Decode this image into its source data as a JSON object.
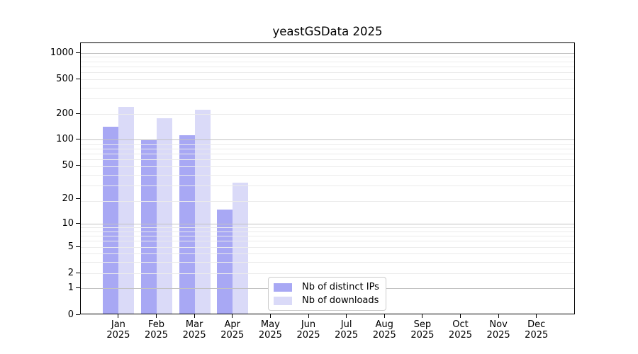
{
  "title": "yeastGSData 2025",
  "chart_data": {
    "type": "bar",
    "title": "yeastGSData 2025",
    "categories": [
      {
        "month": "Jan",
        "year": "2025",
        "key": "jan"
      },
      {
        "month": "Feb",
        "year": "2025",
        "key": "feb"
      },
      {
        "month": "Mar",
        "year": "2025",
        "key": "mar"
      },
      {
        "month": "Apr",
        "year": "2025",
        "key": "apr"
      },
      {
        "month": "May",
        "year": "2025",
        "key": "may"
      },
      {
        "month": "Jun",
        "year": "2025",
        "key": "jun"
      },
      {
        "month": "Jul",
        "year": "2025",
        "key": "jul"
      },
      {
        "month": "Aug",
        "year": "2025",
        "key": "aug"
      },
      {
        "month": "Sep",
        "year": "2025",
        "key": "sep"
      },
      {
        "month": "Oct",
        "year": "2025",
        "key": "oct"
      },
      {
        "month": "Nov",
        "year": "2025",
        "key": "nov"
      },
      {
        "month": "Dec",
        "year": "2025",
        "key": "dec"
      }
    ],
    "series": [
      {
        "name": "Nb of distinct IPs",
        "key": "ips",
        "color": "#a8a8f4",
        "values": [
          140,
          100,
          112,
          15,
          0,
          0,
          0,
          0,
          0,
          0,
          0,
          0
        ]
      },
      {
        "name": "Nb of downloads",
        "key": "downloads",
        "color": "#dadaf8",
        "values": [
          235,
          175,
          220,
          31,
          0,
          0,
          0,
          0,
          0,
          0,
          0,
          0
        ]
      }
    ],
    "y_axis": {
      "scale": "log10(1+x)",
      "ticks": [
        0,
        1,
        2,
        5,
        10,
        20,
        50,
        100,
        200,
        500,
        1000
      ],
      "major_gridlines": [
        1,
        10,
        100,
        1000
      ],
      "minor_gridlines": [
        2,
        3,
        4,
        5,
        6,
        7,
        8,
        9,
        19,
        29,
        39,
        49,
        59,
        69,
        79,
        89,
        199,
        299,
        399,
        499,
        599,
        699,
        799,
        899
      ],
      "range_top_value": 1300,
      "grid_position": "above-bars"
    },
    "xlabel": "",
    "ylabel": "",
    "legend_position": "bottom-center-inside"
  },
  "colors": {
    "series_ips": "#a8a8f4",
    "series_downloads": "#dadaf8",
    "grid_major": "#c2c2c2",
    "grid_minor": "#ebebeb",
    "spine": "#000000",
    "legend_border": "#cccccc",
    "background": "#ffffff"
  }
}
